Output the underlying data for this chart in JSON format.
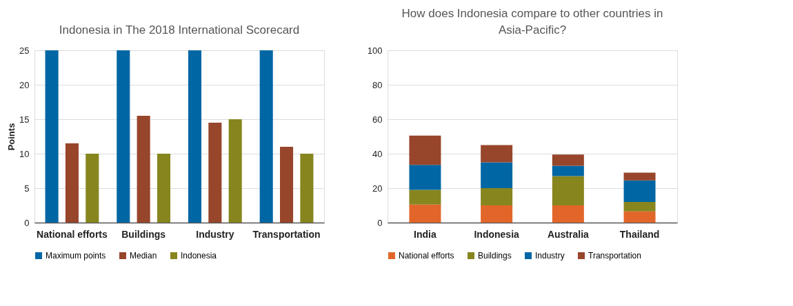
{
  "chart_data": [
    {
      "type": "bar",
      "title": "Indonesia in The 2018 International Scorecard",
      "ylabel": "Points",
      "categories": [
        "National efforts",
        "Buildings",
        "Industry",
        "Transportation"
      ],
      "series": [
        {
          "name": "Maximum points",
          "color": "#0066a4",
          "values": [
            25,
            25,
            25,
            25
          ]
        },
        {
          "name": "Median",
          "color": "#97452b",
          "values": [
            11.5,
            15.5,
            14.5,
            11
          ]
        },
        {
          "name": "Indonesia",
          "color": "#87851e",
          "values": [
            10,
            10,
            15,
            10
          ]
        }
      ],
      "ylim": [
        0,
        25
      ],
      "yticks": [
        0,
        5,
        10,
        15,
        20,
        25
      ],
      "grid": "y",
      "legend": "bottom"
    },
    {
      "type": "bar",
      "stacked": true,
      "title": "How does Indonesia compare to other countries in\nAsia-Pacific?",
      "categories": [
        "India",
        "Indonesia",
        "Australia",
        "Thailand"
      ],
      "series": [
        {
          "name": "National efforts",
          "color": "#e2662a",
          "values": [
            10.5,
            10,
            10,
            6.5
          ]
        },
        {
          "name": "Buildings",
          "color": "#87851e",
          "values": [
            8.5,
            10,
            17,
            5.5
          ]
        },
        {
          "name": "Industry",
          "color": "#0066a4",
          "values": [
            14.5,
            15,
            6,
            12.5
          ]
        },
        {
          "name": "Transportation",
          "color": "#97452b",
          "values": [
            17,
            10,
            6.5,
            4.5
          ]
        }
      ],
      "ylim": [
        0,
        100
      ],
      "yticks": [
        0,
        20,
        40,
        60,
        80,
        100
      ],
      "grid": "y",
      "legend": "bottom"
    }
  ]
}
